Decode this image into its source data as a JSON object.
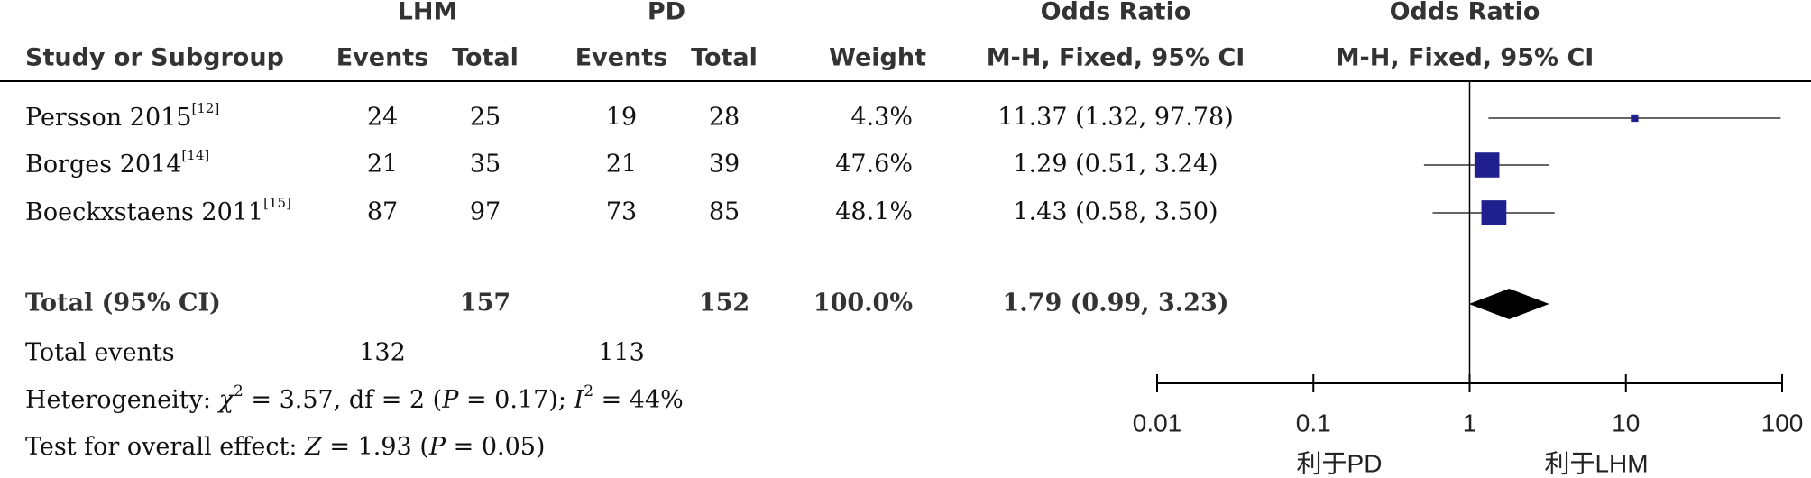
{
  "chart_data": {
    "type": "forest",
    "columns": {
      "study": "Study or Subgroup",
      "group_a": "LHM",
      "group_b": "PD",
      "events": "Events",
      "total": "Total",
      "weight": "Weight",
      "effect": "Odds Ratio",
      "method": "M-H, Fixed, 95% CI"
    },
    "studies": [
      {
        "name": "Persson 2015",
        "ref": "[12]",
        "a_events": 24,
        "a_total": 25,
        "b_events": 19,
        "b_total": 28,
        "weight": 4.3,
        "weight_label": "4.3%",
        "or": 11.37,
        "ci": [
          1.32,
          97.78
        ],
        "or_label": "11.37 (1.32, 97.78)"
      },
      {
        "name": "Borges 2014",
        "ref": "[14]",
        "a_events": 21,
        "a_total": 35,
        "b_events": 21,
        "b_total": 39,
        "weight": 47.6,
        "weight_label": "47.6%",
        "or": 1.29,
        "ci": [
          0.51,
          3.24
        ],
        "or_label": "1.29 (0.51, 3.24)"
      },
      {
        "name": "Boeckxstaens 2011",
        "ref": "[15]",
        "a_events": 87,
        "a_total": 97,
        "b_events": 73,
        "b_total": 85,
        "weight": 48.1,
        "weight_label": "48.1%",
        "or": 1.43,
        "ci": [
          0.58,
          3.5
        ],
        "or_label": "1.43 (0.58, 3.50)"
      }
    ],
    "total": {
      "name": "Total (95% CI)",
      "a_total": 157,
      "b_total": 152,
      "weight": 100.0,
      "weight_label": "100.0%",
      "or": 1.79,
      "ci": [
        0.99,
        3.23
      ],
      "or_label": "1.79 (0.99, 3.23)"
    },
    "events_row": {
      "name": "Total events",
      "a_events": 132,
      "b_events": 113
    },
    "heterogeneity": [
      "Heterogeneity: ",
      "χ",
      "2",
      " = 3.57, df = 2 (",
      "P",
      " = 0.17); ",
      "I",
      "2",
      " = 44%"
    ],
    "overall": [
      "Test for overall effect: ",
      "Z",
      " = 1.93 (",
      "P",
      " = 0.05)"
    ],
    "color": "#1f1f8f",
    "log_x": true,
    "xlim": [
      0.01,
      100
    ],
    "xticks": [
      0.01,
      0.1,
      1,
      10,
      100
    ],
    "favours": [
      "利于PD",
      "利于LHM"
    ]
  }
}
